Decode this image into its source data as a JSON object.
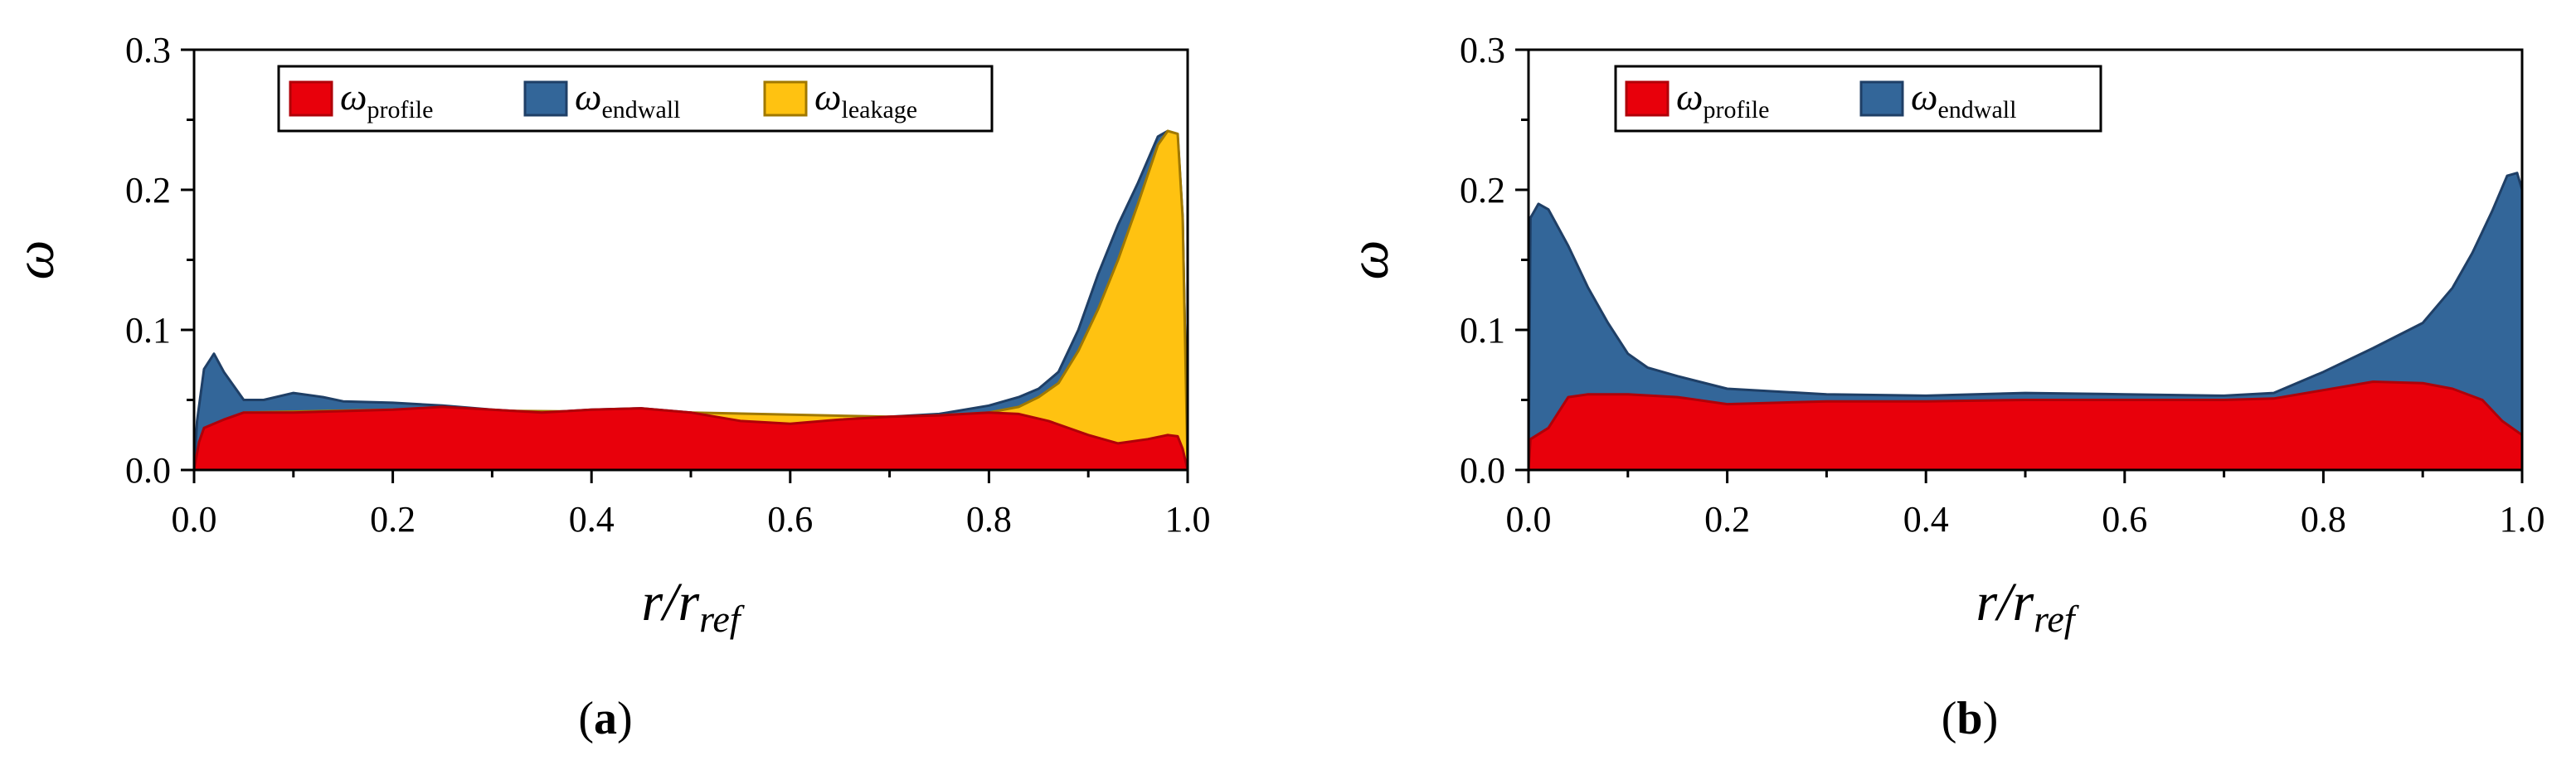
{
  "chart_data": [
    {
      "type": "area",
      "stacked": true,
      "panel_label": {
        "open": "(",
        "letter": "a",
        "close": ")"
      },
      "ylabel": "ω",
      "xlabel": {
        "base": "r/r",
        "sub": "ref"
      },
      "xlim": [
        0,
        1
      ],
      "ylim": [
        0,
        0.3
      ],
      "xticks": [
        "0.0",
        "0.2",
        "0.4",
        "0.6",
        "0.8",
        "1.0"
      ],
      "yticks": [
        "0.0",
        "0.1",
        "0.2",
        "0.3"
      ],
      "legend_position": "top",
      "series": [
        {
          "legend_symbol": "ω",
          "legend_sub": "profile",
          "color": "#e8000b",
          "edge": "#b00008",
          "points": [
            [
              0,
              0.0
            ],
            [
              0.005,
              0.02
            ],
            [
              0.01,
              0.03
            ],
            [
              0.03,
              0.036
            ],
            [
              0.05,
              0.041
            ],
            [
              0.1,
              0.041
            ],
            [
              0.15,
              0.042
            ],
            [
              0.2,
              0.043
            ],
            [
              0.25,
              0.045
            ],
            [
              0.3,
              0.043
            ],
            [
              0.35,
              0.041
            ],
            [
              0.4,
              0.043
            ],
            [
              0.45,
              0.044
            ],
            [
              0.5,
              0.041
            ],
            [
              0.55,
              0.035
            ],
            [
              0.6,
              0.033
            ],
            [
              0.65,
              0.036
            ],
            [
              0.7,
              0.038
            ],
            [
              0.75,
              0.039
            ],
            [
              0.8,
              0.041
            ],
            [
              0.83,
              0.04
            ],
            [
              0.86,
              0.035
            ],
            [
              0.9,
              0.025
            ],
            [
              0.93,
              0.019
            ],
            [
              0.96,
              0.022
            ],
            [
              0.98,
              0.025
            ],
            [
              0.99,
              0.024
            ],
            [
              0.995,
              0.015
            ],
            [
              1.0,
              0.0
            ]
          ]
        },
        {
          "legend_symbol": "ω",
          "legend_sub": "endwall",
          "color": "#336699",
          "edge": "#1f3f66",
          "points": [
            [
              0,
              0.0
            ],
            [
              0.003,
              0.035
            ],
            [
              0.01,
              0.072
            ],
            [
              0.02,
              0.083
            ],
            [
              0.03,
              0.07
            ],
            [
              0.05,
              0.05
            ],
            [
              0.07,
              0.05
            ],
            [
              0.1,
              0.055
            ],
            [
              0.13,
              0.052
            ],
            [
              0.15,
              0.049
            ],
            [
              0.2,
              0.048
            ],
            [
              0.25,
              0.046
            ],
            [
              0.3,
              0.043
            ],
            [
              0.35,
              0.041
            ],
            [
              0.4,
              0.043
            ],
            [
              0.45,
              0.044
            ],
            [
              0.5,
              0.041
            ],
            [
              0.55,
              0.035
            ],
            [
              0.6,
              0.033
            ],
            [
              0.65,
              0.036
            ],
            [
              0.7,
              0.038
            ],
            [
              0.75,
              0.04
            ],
            [
              0.8,
              0.046
            ],
            [
              0.83,
              0.052
            ],
            [
              0.85,
              0.058
            ],
            [
              0.87,
              0.07
            ],
            [
              0.89,
              0.1
            ],
            [
              0.91,
              0.14
            ],
            [
              0.93,
              0.175
            ],
            [
              0.95,
              0.205
            ],
            [
              0.97,
              0.238
            ],
            [
              0.98,
              0.242
            ],
            [
              0.99,
              0.238
            ],
            [
              0.995,
              0.18
            ],
            [
              1.0,
              0.0
            ]
          ]
        },
        {
          "legend_symbol": "ω",
          "legend_sub": "leakage",
          "color": "#ffc211",
          "edge": "#a07800",
          "points": [
            [
              0,
              0.0
            ],
            [
              0.05,
              0.041
            ],
            [
              0.2,
              0.043
            ],
            [
              0.5,
              0.041
            ],
            [
              0.7,
              0.038
            ],
            [
              0.75,
              0.039
            ],
            [
              0.8,
              0.041
            ],
            [
              0.83,
              0.045
            ],
            [
              0.85,
              0.052
            ],
            [
              0.87,
              0.062
            ],
            [
              0.89,
              0.085
            ],
            [
              0.91,
              0.115
            ],
            [
              0.93,
              0.15
            ],
            [
              0.95,
              0.19
            ],
            [
              0.97,
              0.232
            ],
            [
              0.98,
              0.242
            ],
            [
              0.99,
              0.24
            ],
            [
              0.995,
              0.18
            ],
            [
              1.0,
              0.0
            ]
          ]
        }
      ]
    },
    {
      "type": "area",
      "stacked": true,
      "panel_label": {
        "open": "(",
        "letter": "b",
        "close": ")"
      },
      "ylabel": "ω",
      "xlabel": {
        "base": "r/r",
        "sub": "ref"
      },
      "xlim": [
        0,
        1
      ],
      "ylim": [
        0,
        0.3
      ],
      "xticks": [
        "0.0",
        "0.2",
        "0.4",
        "0.6",
        "0.8",
        "1.0"
      ],
      "yticks": [
        "0.0",
        "0.1",
        "0.2",
        "0.3"
      ],
      "legend_position": "top-left",
      "series": [
        {
          "legend_symbol": "ω",
          "legend_sub": "profile",
          "color": "#e8000b",
          "edge": "#b00008",
          "points": [
            [
              0,
              0.0
            ],
            [
              0.002,
              0.022
            ],
            [
              0.02,
              0.03
            ],
            [
              0.04,
              0.052
            ],
            [
              0.06,
              0.054
            ],
            [
              0.1,
              0.054
            ],
            [
              0.15,
              0.052
            ],
            [
              0.2,
              0.047
            ],
            [
              0.3,
              0.049
            ],
            [
              0.4,
              0.049
            ],
            [
              0.5,
              0.05
            ],
            [
              0.6,
              0.05
            ],
            [
              0.7,
              0.05
            ],
            [
              0.75,
              0.051
            ],
            [
              0.8,
              0.057
            ],
            [
              0.85,
              0.063
            ],
            [
              0.9,
              0.062
            ],
            [
              0.93,
              0.058
            ],
            [
              0.96,
              0.05
            ],
            [
              0.98,
              0.035
            ],
            [
              1.0,
              0.025
            ],
            [
              1.0,
              0.0
            ]
          ]
        },
        {
          "legend_symbol": "ω",
          "legend_sub": "endwall",
          "color": "#336699",
          "edge": "#1f3f66",
          "points": [
            [
              0,
              0.0
            ],
            [
              0.002,
              0.18
            ],
            [
              0.01,
              0.19
            ],
            [
              0.02,
              0.186
            ],
            [
              0.04,
              0.16
            ],
            [
              0.06,
              0.13
            ],
            [
              0.08,
              0.105
            ],
            [
              0.1,
              0.083
            ],
            [
              0.12,
              0.073
            ],
            [
              0.15,
              0.067
            ],
            [
              0.2,
              0.058
            ],
            [
              0.3,
              0.054
            ],
            [
              0.4,
              0.053
            ],
            [
              0.5,
              0.055
            ],
            [
              0.6,
              0.054
            ],
            [
              0.7,
              0.053
            ],
            [
              0.75,
              0.055
            ],
            [
              0.8,
              0.07
            ],
            [
              0.85,
              0.087
            ],
            [
              0.9,
              0.105
            ],
            [
              0.93,
              0.13
            ],
            [
              0.95,
              0.155
            ],
            [
              0.97,
              0.185
            ],
            [
              0.985,
              0.21
            ],
            [
              0.995,
              0.212
            ],
            [
              1.0,
              0.2
            ],
            [
              1.0,
              0.0
            ]
          ]
        }
      ]
    }
  ]
}
